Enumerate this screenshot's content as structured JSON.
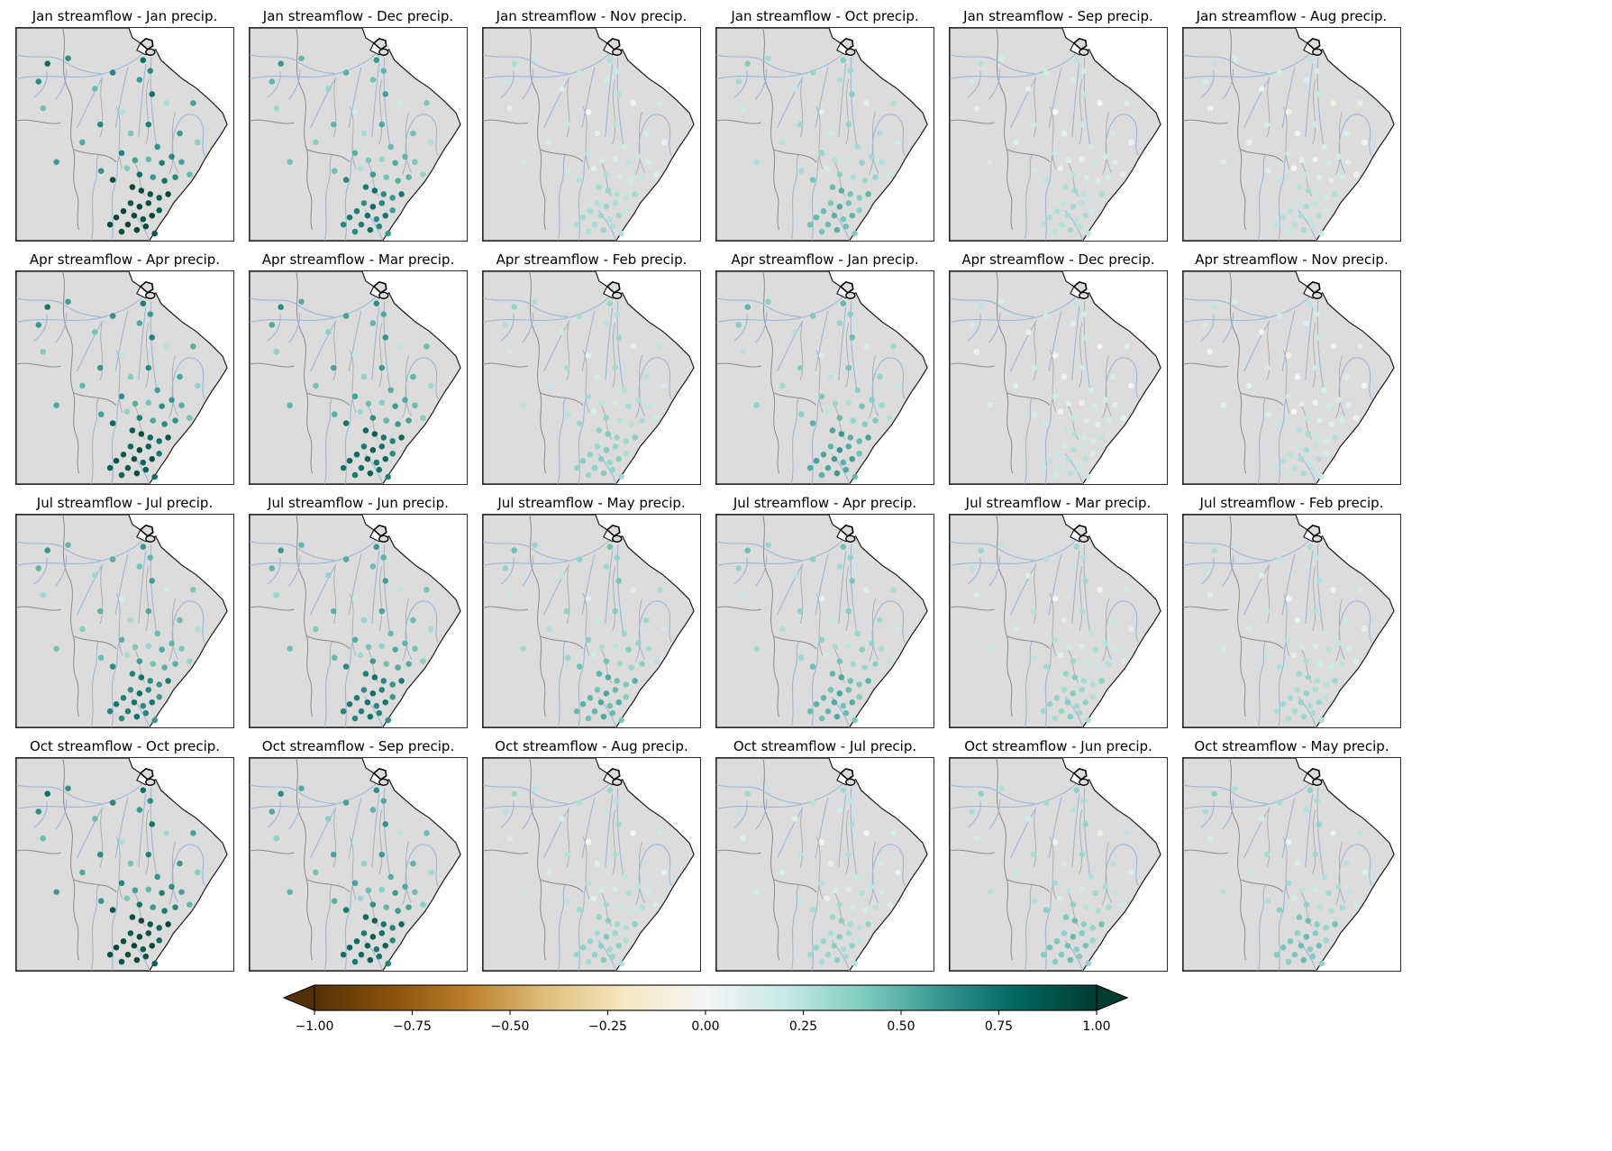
{
  "figure": {
    "background": "#ffffff",
    "description": "4x6 grid of Brazil maps showing station correlations between monthly streamflow and lagged monthly precipitation, with a shared horizontal BrBG colorbar"
  },
  "colors": {
    "land": "#dcdcdc",
    "ocean": "#ffffff",
    "river": "#9cb8d8",
    "country_border": "#1a1a1a",
    "neighbor_border": "#8a8a8a",
    "state_border": "#a6a6a6",
    "panel_frame": "#2b2b2b"
  },
  "chart_data": {
    "type": "scatter",
    "subtype": "map-grid-correlation",
    "map_region": "Brazil / eastern South America with rivers and state boundaries",
    "grid": {
      "rows": 4,
      "cols": 6
    },
    "row_streamflow_months": [
      "Jan",
      "Apr",
      "Jul",
      "Oct"
    ],
    "value_range": [
      -1,
      1
    ],
    "colormap": {
      "name": "BrBG",
      "stops": [
        "#543005",
        "#8c510a",
        "#bf812d",
        "#dfc27d",
        "#f6e8c3",
        "#f5f5f5",
        "#c7eae5",
        "#80cdc1",
        "#35978f",
        "#01665e",
        "#003c30"
      ]
    },
    "colorbar": {
      "orientation": "horizontal",
      "min": -1,
      "max": 1,
      "extend": "both",
      "tick_values": [
        -1.0,
        -0.75,
        -0.5,
        -0.25,
        0.0,
        0.25,
        0.5,
        0.75,
        1.0
      ],
      "tick_labels": [
        "−1.00",
        "−0.75",
        "−0.50",
        "−0.25",
        "0.00",
        "0.25",
        "0.50",
        "0.75",
        "1.00"
      ]
    },
    "panels": [
      {
        "title": "Jan streamflow - Jan precip.",
        "streamflow_month": "Jan",
        "precip_month": "Jan",
        "lag_months": 0,
        "approx_mean_corr": 0.55,
        "approx_spread": 0.3,
        "south_extra": 0.25
      },
      {
        "title": "Jan streamflow - Dec precip.",
        "streamflow_month": "Jan",
        "precip_month": "Dec",
        "lag_months": 1,
        "approx_mean_corr": 0.4,
        "approx_spread": 0.25,
        "south_extra": 0.15
      },
      {
        "title": "Jan streamflow - Nov precip.",
        "streamflow_month": "Jan",
        "precip_month": "Nov",
        "lag_months": 2,
        "approx_mean_corr": 0.15,
        "approx_spread": 0.15,
        "south_extra": 0.05
      },
      {
        "title": "Jan streamflow - Oct precip.",
        "streamflow_month": "Jan",
        "precip_month": "Oct",
        "lag_months": 3,
        "approx_mean_corr": 0.25,
        "approx_spread": 0.18,
        "south_extra": 0.1
      },
      {
        "title": "Jan streamflow - Sep precip.",
        "streamflow_month": "Jan",
        "precip_month": "Sep",
        "lag_months": 4,
        "approx_mean_corr": 0.12,
        "approx_spread": 0.15,
        "south_extra": 0.05
      },
      {
        "title": "Jan streamflow - Aug precip.",
        "streamflow_month": "Jan",
        "precip_month": "Aug",
        "lag_months": 5,
        "approx_mean_corr": 0.08,
        "approx_spread": 0.18,
        "south_extra": 0.05
      },
      {
        "title": "Apr streamflow - Apr precip.",
        "streamflow_month": "Apr",
        "precip_month": "Apr",
        "lag_months": 0,
        "approx_mean_corr": 0.5,
        "approx_spread": 0.28,
        "south_extra": 0.2
      },
      {
        "title": "Apr streamflow - Mar precip.",
        "streamflow_month": "Apr",
        "precip_month": "Mar",
        "lag_months": 1,
        "approx_mean_corr": 0.45,
        "approx_spread": 0.25,
        "south_extra": 0.18
      },
      {
        "title": "Apr streamflow - Feb precip.",
        "streamflow_month": "Apr",
        "precip_month": "Feb",
        "lag_months": 2,
        "approx_mean_corr": 0.22,
        "approx_spread": 0.15,
        "south_extra": 0.05
      },
      {
        "title": "Apr streamflow - Jan precip.",
        "streamflow_month": "Apr",
        "precip_month": "Jan",
        "lag_months": 3,
        "approx_mean_corr": 0.32,
        "approx_spread": 0.2,
        "south_extra": 0.1
      },
      {
        "title": "Apr streamflow - Dec precip.",
        "streamflow_month": "Apr",
        "precip_month": "Dec",
        "lag_months": 4,
        "approx_mean_corr": 0.1,
        "approx_spread": 0.15,
        "south_extra": 0.02
      },
      {
        "title": "Apr streamflow - Nov precip.",
        "streamflow_month": "Apr",
        "precip_month": "Nov",
        "lag_months": 5,
        "approx_mean_corr": 0.08,
        "approx_spread": 0.18,
        "south_extra": 0.05
      },
      {
        "title": "Jul streamflow - Jul precip.",
        "streamflow_month": "Jul",
        "precip_month": "Jul",
        "lag_months": 0,
        "approx_mean_corr": 0.4,
        "approx_spread": 0.25,
        "south_extra": 0.15
      },
      {
        "title": "Jul streamflow - Jun precip.",
        "streamflow_month": "Jul",
        "precip_month": "Jun",
        "lag_months": 1,
        "approx_mean_corr": 0.42,
        "approx_spread": 0.22,
        "south_extra": 0.15
      },
      {
        "title": "Jul streamflow - May precip.",
        "streamflow_month": "Jul",
        "precip_month": "May",
        "lag_months": 2,
        "approx_mean_corr": 0.28,
        "approx_spread": 0.2,
        "south_extra": 0.08
      },
      {
        "title": "Jul streamflow - Apr precip.",
        "streamflow_month": "Jul",
        "precip_month": "Apr",
        "lag_months": 3,
        "approx_mean_corr": 0.28,
        "approx_spread": 0.2,
        "south_extra": 0.08
      },
      {
        "title": "Jul streamflow - Mar precip.",
        "streamflow_month": "Jul",
        "precip_month": "Mar",
        "lag_months": 4,
        "approx_mean_corr": 0.18,
        "approx_spread": 0.18,
        "south_extra": 0.05
      },
      {
        "title": "Jul streamflow - Feb precip.",
        "streamflow_month": "Jul",
        "precip_month": "Feb",
        "lag_months": 5,
        "approx_mean_corr": 0.16,
        "approx_spread": 0.15,
        "south_extra": 0.05
      },
      {
        "title": "Oct streamflow - Oct precip.",
        "streamflow_month": "Oct",
        "precip_month": "Oct",
        "lag_months": 0,
        "approx_mean_corr": 0.55,
        "approx_spread": 0.28,
        "south_extra": 0.22
      },
      {
        "title": "Oct streamflow - Sep precip.",
        "streamflow_month": "Oct",
        "precip_month": "Sep",
        "lag_months": 1,
        "approx_mean_corr": 0.45,
        "approx_spread": 0.25,
        "south_extra": 0.18
      },
      {
        "title": "Oct streamflow - Aug precip.",
        "streamflow_month": "Oct",
        "precip_month": "Aug",
        "lag_months": 2,
        "approx_mean_corr": 0.18,
        "approx_spread": 0.18,
        "south_extra": 0.05
      },
      {
        "title": "Oct streamflow - Jul precip.",
        "streamflow_month": "Oct",
        "precip_month": "Jul",
        "lag_months": 3,
        "approx_mean_corr": 0.15,
        "approx_spread": 0.2,
        "south_extra": 0.05
      },
      {
        "title": "Oct streamflow - Jun precip.",
        "streamflow_month": "Oct",
        "precip_month": "Jun",
        "lag_months": 4,
        "approx_mean_corr": 0.22,
        "approx_spread": 0.18,
        "south_extra": 0.08
      },
      {
        "title": "Oct streamflow - May precip.",
        "streamflow_month": "Oct",
        "precip_month": "May",
        "lag_months": 5,
        "approx_mean_corr": 0.22,
        "approx_spread": 0.18,
        "south_extra": 0.08
      }
    ],
    "stations": [
      [
        35,
        40,
        0.9
      ],
      [
        58,
        34,
        0.35
      ],
      [
        88,
        68,
        -0.25
      ],
      [
        108,
        50,
        0.5
      ],
      [
        138,
        58,
        0.2
      ],
      [
        152,
        74,
        0.75
      ],
      [
        168,
        84,
        -0.85
      ],
      [
        198,
        84,
        0.1
      ],
      [
        118,
        94,
        -0.95
      ],
      [
        94,
        108,
        0.45
      ],
      [
        74,
        128,
        0.0
      ],
      [
        128,
        118,
        -0.35
      ],
      [
        148,
        108,
        0.6
      ],
      [
        183,
        118,
        0.25
      ],
      [
        203,
        128,
        -0.5
      ],
      [
        158,
        133,
        0.3
      ],
      [
        25,
        60,
        0.4
      ],
      [
        30,
        90,
        -0.3
      ],
      [
        45,
        150,
        0.2
      ],
      [
        142,
        36,
        0.85
      ],
      [
        150,
        48,
        0.4
      ],
      [
        118,
        140,
        0.5
      ],
      [
        133,
        148,
        0.1
      ],
      [
        148,
        147,
        -0.2
      ],
      [
        163,
        151,
        0.6
      ],
      [
        174,
        144,
        0.4
      ],
      [
        138,
        164,
        0.8
      ],
      [
        153,
        167,
        0.2
      ],
      [
        166,
        171,
        -0.1
      ],
      [
        178,
        167,
        0.5
      ],
      [
        124,
        157,
        -0.45
      ],
      [
        95,
        160,
        0.3
      ],
      [
        108,
        170,
        0.5
      ],
      [
        185,
        150,
        0.1
      ],
      [
        194,
        164,
        -0.2
      ],
      [
        130,
        178,
        0.7
      ],
      [
        140,
        182,
        0.95
      ],
      [
        150,
        186,
        0.5
      ],
      [
        160,
        190,
        0.3
      ],
      [
        170,
        186,
        0.8
      ],
      [
        148,
        196,
        0.6
      ],
      [
        138,
        200,
        1.0
      ],
      [
        128,
        196,
        0.45
      ],
      [
        120,
        205,
        0.7
      ],
      [
        132,
        210,
        0.9
      ],
      [
        142,
        214,
        0.5
      ],
      [
        152,
        210,
        0.85
      ],
      [
        160,
        204,
        0.2
      ],
      [
        145,
        222,
        0.6
      ],
      [
        135,
        226,
        0.95
      ],
      [
        125,
        220,
        0.7
      ],
      [
        118,
        228,
        0.5
      ],
      [
        155,
        230,
        0.3
      ],
      [
        112,
        212,
        0.8
      ],
      [
        105,
        220,
        0.6
      ]
    ]
  }
}
